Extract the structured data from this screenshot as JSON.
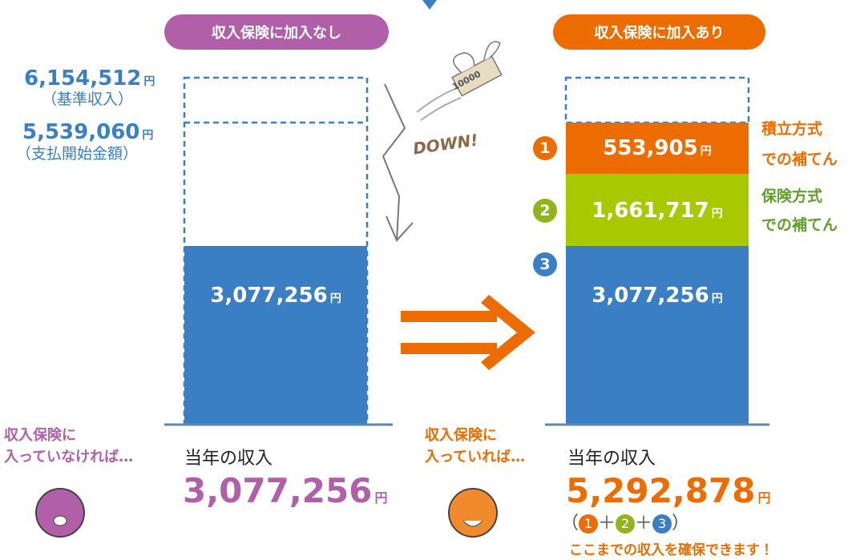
{
  "left": {
    "label": "収入保険に加入なし",
    "base": {
      "amount": "6,154,512",
      "unit": "円",
      "note": "（基準収入）"
    },
    "threshold": {
      "amount": "5,539,060",
      "unit": "円",
      "note": "（支払開始金額）"
    },
    "bar": {
      "amount": "3,077,256",
      "unit": "円"
    },
    "caption": [
      "収入保険に",
      "入っていなければ…"
    ],
    "result_label": "当年の収入",
    "result": {
      "amount": "3,077,256",
      "unit": "円"
    }
  },
  "illustration": {
    "bill": "10000",
    "text": "DOWN!"
  },
  "right": {
    "label": "収入保険に加入あり",
    "segments": [
      {
        "number": "1",
        "amount": "553,905",
        "unit": "円",
        "note": [
          "積立方式",
          "での補てん"
        ]
      },
      {
        "number": "2",
        "amount": "1,661,717",
        "unit": "円",
        "note": [
          "保険方式",
          "での補てん"
        ]
      },
      {
        "number": "3",
        "amount": "3,077,256",
        "unit": "円"
      }
    ],
    "caption": [
      "収入保険に",
      "入っていれば…"
    ],
    "result_label": "当年の収入",
    "result": {
      "amount": "5,292,878",
      "unit": "円"
    },
    "formula": {
      "open": "（",
      "plus": "＋",
      "close": "）"
    },
    "footer": "ここまでの収入を確保できます！"
  }
}
